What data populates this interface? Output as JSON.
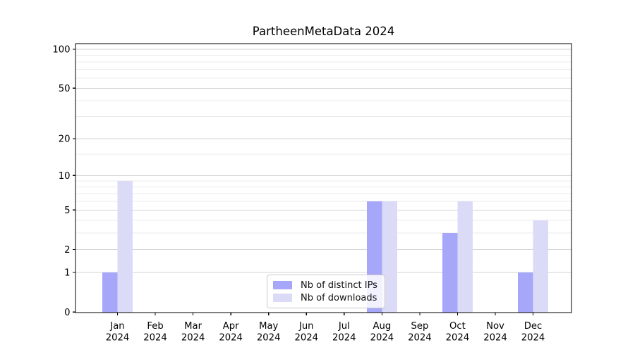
{
  "chart_data": {
    "type": "bar",
    "title": "PartheenMetaData 2024",
    "months": [
      "Jan",
      "Feb",
      "Mar",
      "Apr",
      "May",
      "Jun",
      "Jul",
      "Aug",
      "Sep",
      "Oct",
      "Nov",
      "Dec"
    ],
    "year": "2024",
    "categories": [
      "Jan 2024",
      "Feb 2024",
      "Mar 2024",
      "Apr 2024",
      "May 2024",
      "Jun 2024",
      "Jul 2024",
      "Aug 2024",
      "Sep 2024",
      "Oct 2024",
      "Nov 2024",
      "Dec 2024"
    ],
    "series": [
      {
        "name": "Nb of distinct IPs",
        "color": "#A7A7FA",
        "values": [
          1,
          0,
          0,
          0,
          0,
          0,
          0,
          6,
          0,
          3,
          0,
          1
        ]
      },
      {
        "name": "Nb of downloads",
        "color": "#DBDBF8",
        "values": [
          9,
          0,
          0,
          0,
          0,
          0,
          0,
          6,
          0,
          6,
          0,
          4
        ]
      }
    ],
    "y_scale": "log1p",
    "y_ticks": [
      0,
      1,
      2,
      5,
      10,
      20,
      50,
      100
    ],
    "y_minor_gridlines": [
      3,
      4,
      6,
      7,
      8,
      9,
      15,
      30,
      40,
      60,
      70,
      80,
      90
    ],
    "ylim": [
      0,
      111
    ],
    "grid": "horizontal",
    "legend_position": "inside-bottom-center",
    "colors": {
      "spine": "#000000",
      "major_grid": "#d3d3d3",
      "minor_grid": "#ebebeb",
      "text": "#000000"
    }
  }
}
